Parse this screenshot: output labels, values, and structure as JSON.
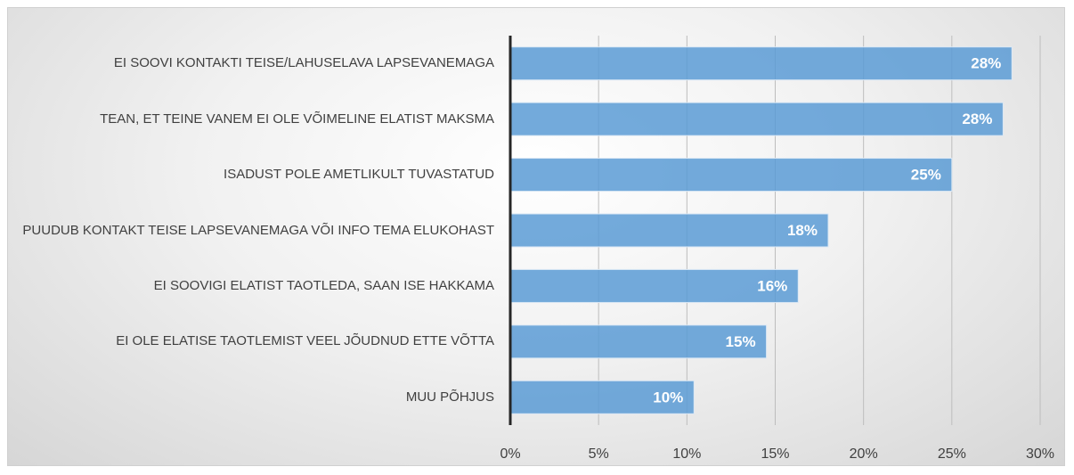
{
  "chart_data": {
    "type": "bar",
    "orientation": "horizontal",
    "categories": [
      "EI SOOVI KONTAKTI TEISE/LAHUSELAVA LAPSEVANEMAGA",
      "TEAN, ET TEINE VANEM EI OLE VÕIMELINE ELATIST MAKSMA",
      "ISADUST POLE AMETLIKULT TUVASTATUD",
      "PUUDUB KONTAKT TEISE LAPSEVANEMAGA VÕI INFO TEMA ELUKOHAST",
      "EI SOOVIGI ELATIST TAOTLEDA, SAAN ISE HAKKAMA",
      "EI OLE ELATISE TAOTLEMIST VEEL JÕUDNUD ETTE VÕTTA",
      "MUU PÕHJUS"
    ],
    "values": [
      28.4,
      27.9,
      25.0,
      18.0,
      16.3,
      14.5,
      10.4
    ],
    "value_labels": [
      "28%",
      "28%",
      "25%",
      "18%",
      "16%",
      "15%",
      "10%"
    ],
    "color": "#5b9bd5",
    "xlim": [
      0,
      30
    ],
    "xticks": [
      {
        "value": 0,
        "label": "0%"
      },
      {
        "value": 5,
        "label": "5%"
      },
      {
        "value": 10,
        "label": "10%"
      },
      {
        "value": 15,
        "label": "15%"
      },
      {
        "value": 20,
        "label": "20%"
      },
      {
        "value": 25,
        "label": "25%"
      },
      {
        "value": 30,
        "label": "30%"
      }
    ],
    "grid": true
  }
}
